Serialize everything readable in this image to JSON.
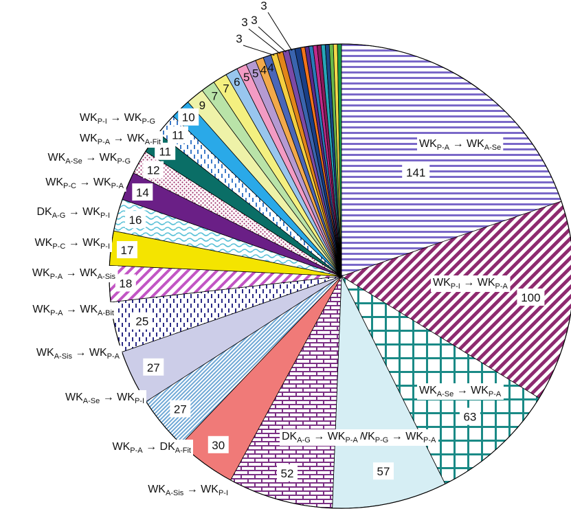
{
  "chart_data": {
    "type": "pie",
    "title": "",
    "slices": [
      {
        "value": 141,
        "label": "WK_{P-A} → WK_{A-Se}",
        "color": "#7a68c8",
        "pattern": "hlines"
      },
      {
        "value": 100,
        "label": "WK_{P-I} → WK_{P-A}",
        "color": "#8e2a6f",
        "pattern": "diag"
      },
      {
        "value": 63,
        "label": "WK_{A-Se} → WK_{P-A}",
        "color": "#1a8a86",
        "pattern": "grid"
      },
      {
        "value": 57,
        "label": "WK_{P-G} → WK_{P-A}",
        "color": "#d6eef4",
        "pattern": "solid"
      },
      {
        "value": 52,
        "label": "DK_{A-G} → WK_{P-A}",
        "color": "#7b2f84",
        "pattern": "brick"
      },
      {
        "value": 30,
        "label": "WK_{A-Sis} → WK_{P-I}",
        "color": "#f07a78",
        "pattern": "solid"
      },
      {
        "value": 27,
        "label": "WK_{P-A} → DK_{A-Fit}",
        "color": "#6fa8d6",
        "pattern": "fine"
      },
      {
        "value": 27,
        "label": "WK_{A-Se} → WK_{P-I}",
        "color": "#cccde8",
        "pattern": "solid"
      },
      {
        "value": 25,
        "label": "WK_{A-Sis} → WK_{P-A}",
        "color": "#2a2a86",
        "pattern": "dash"
      },
      {
        "value": 18,
        "label": "WK_{P-A} → WK_{A-Bit}",
        "color": "#c255c4",
        "pattern": "diag2"
      },
      {
        "value": 17,
        "label": "WK_{P-A} → WK_{A-Sis}",
        "color": "#f4e400",
        "pattern": "solid"
      },
      {
        "value": 16,
        "label": "WK_{P-C} → WK_{P-I}",
        "color": "#5cc2d8",
        "pattern": "wave"
      },
      {
        "value": 14,
        "label": "DK_{A-G} → WK_{P-I}",
        "color": "#6a1f86",
        "pattern": "solid"
      },
      {
        "value": 12,
        "label": "WK_{P-C} → WK_{P-A}",
        "color": "#a0306a",
        "pattern": "dots"
      },
      {
        "value": 11,
        "label": "WK_{A-Se} → WK_{P-G}",
        "color": "#0a6e66",
        "pattern": "solid"
      },
      {
        "value": 11,
        "label": "",
        "color": "#3a78c8",
        "pattern": "dash"
      },
      {
        "value": 10,
        "label": "WK_{P-A} → WK_{A-Fit}",
        "color": "#2aa9e8",
        "pattern": "solid"
      },
      {
        "value": 9,
        "label": "WK_{P-I} → WK_{P-G}",
        "color": "#eef2a8",
        "pattern": "solid"
      },
      {
        "value": 7,
        "label": "",
        "color": "#b9e3a8",
        "pattern": "solid"
      },
      {
        "value": 7,
        "label": "",
        "color": "#f4f080",
        "pattern": "solid"
      },
      {
        "value": 6,
        "label": "",
        "color": "#98c6ee",
        "pattern": "solid"
      },
      {
        "value": 5,
        "label": "",
        "color": "#f39bc4",
        "pattern": "solid"
      },
      {
        "value": 5,
        "label": "",
        "color": "#b59ad2",
        "pattern": "solid"
      },
      {
        "value": 4,
        "label": "",
        "color": "#f2a94a",
        "pattern": "solid"
      },
      {
        "value": 4,
        "label": "",
        "color": "#4a67b8",
        "pattern": "solid"
      },
      {
        "value": 3,
        "label": "",
        "color": "#f4ce40",
        "pattern": "solid"
      },
      {
        "value": 3,
        "label": "",
        "color": "#e2861a",
        "pattern": "solid"
      },
      {
        "value": 3,
        "label": "",
        "color": "#7c4aa6",
        "pattern": "solid"
      },
      {
        "value": 3,
        "label": "",
        "color": "#3a64ae",
        "pattern": "solid"
      },
      {
        "value": 3,
        "label": "",
        "color": "#1a3f86",
        "pattern": "solid"
      },
      {
        "value": 2,
        "label": "",
        "color": "#f2741a",
        "pattern": "solid"
      },
      {
        "value": 2,
        "label": "",
        "color": "#5a2a8a",
        "pattern": "solid"
      },
      {
        "value": 2,
        "label": "",
        "color": "#2a7ab8",
        "pattern": "solid"
      },
      {
        "value": 2,
        "label": "",
        "color": "#c02a8a",
        "pattern": "solid"
      },
      {
        "value": 2,
        "label": "",
        "color": "#8a1a5a",
        "pattern": "solid"
      },
      {
        "value": 2,
        "label": "",
        "color": "#26a6b8",
        "pattern": "solid"
      },
      {
        "value": 2,
        "label": "",
        "color": "#1a4a8a",
        "pattern": "solid"
      },
      {
        "value": 2,
        "label": "",
        "color": "#6ab84a",
        "pattern": "solid"
      },
      {
        "value": 2,
        "label": "",
        "color": "#f4d84a",
        "pattern": "solid"
      },
      {
        "value": 2,
        "label": "",
        "color": "#1a9a4a",
        "pattern": "solid"
      }
    ]
  }
}
